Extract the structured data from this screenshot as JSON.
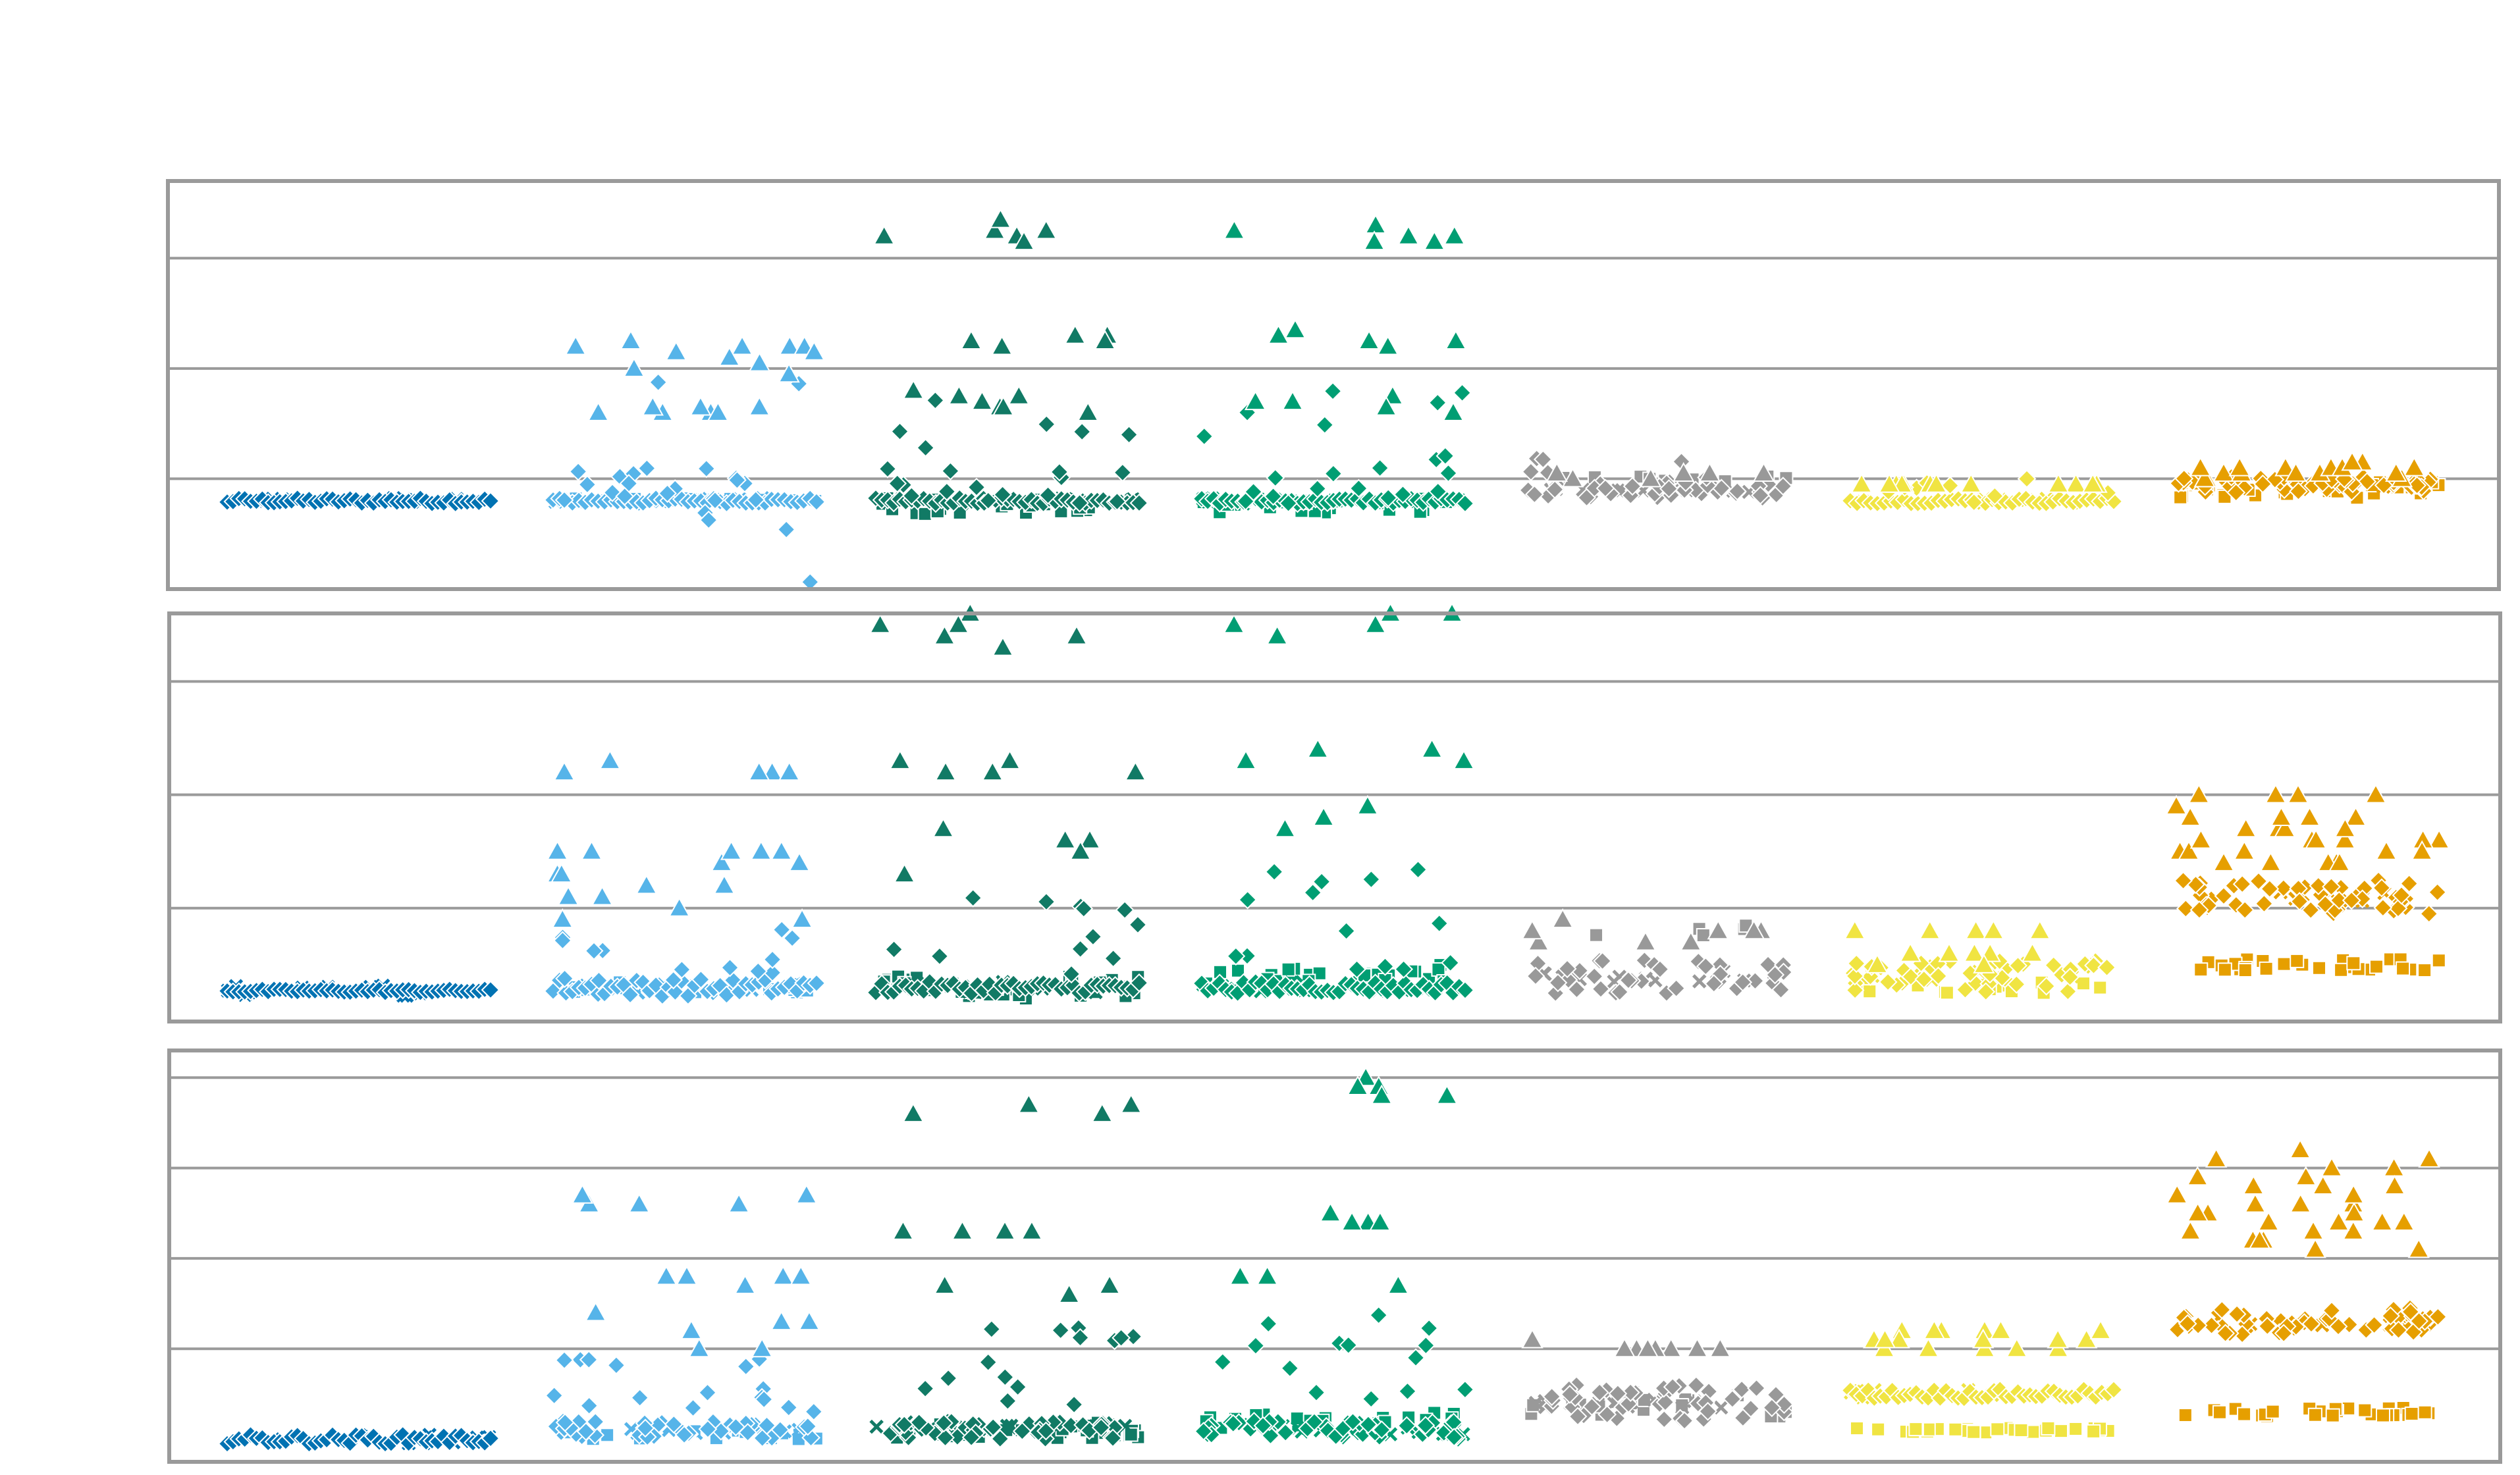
{
  "chart_data": [
    {
      "type": "scatter",
      "panel": 1,
      "title": "",
      "xlabel": "",
      "ylabel": "",
      "grid": true,
      "gridlines_y": [
        2,
        4,
        6
      ],
      "ylim": [
        0,
        7.4
      ],
      "columns": [
        {
          "color": "#0072B2",
          "diamond_bands": [
            [
              1.6,
              0.1,
              46
            ]
          ],
          "square_bands": [],
          "triangle_y": [],
          "x_markers": 12
        },
        {
          "color": "#56B4E9",
          "diamond_bands": [
            [
              1.6,
              0.1,
              42
            ],
            [
              1.9,
              0.6,
              14
            ],
            [
              2.0,
              4.0,
              9
            ]
          ],
          "square_bands": [
            [
              1.6,
              0.1,
              20
            ]
          ],
          "triangle_y": [
            3.2,
            3.3,
            3.2,
            4.4,
            4.5,
            4.4,
            4.4,
            4.3,
            4.1,
            4.3,
            4.2,
            3.9,
            4.0,
            3.3,
            3.2,
            3.2,
            3.3,
            4.4
          ],
          "x_markers": 10
        },
        {
          "color": "#117A65",
          "diamond_bands": [
            [
              1.6,
              0.1,
              45
            ],
            [
              1.9,
              0.7,
              16
            ],
            [
              3.0,
              1.0,
              6
            ]
          ],
          "square_bands": [
            [
              1.5,
              0.3,
              30
            ]
          ],
          "triangle_y": [
            6.5,
            6.7,
            6.5,
            6.4,
            6.4,
            6.3,
            4.6,
            4.6,
            4.5,
            4.5,
            4.4,
            3.6,
            3.5,
            3.5,
            3.3,
            3.2,
            3.3,
            3.4
          ],
          "x_markers": 14
        },
        {
          "color": "#009E73",
          "diamond_bands": [
            [
              1.6,
              0.1,
              45
            ],
            [
              1.9,
              0.9,
              14
            ],
            [
              3.0,
              1.2,
              7
            ]
          ],
          "square_bands": [
            [
              1.5,
              0.3,
              25
            ]
          ],
          "triangle_y": [
            6.4,
            6.5,
            6.6,
            6.4,
            6.3,
            6.3,
            4.7,
            4.6,
            4.5,
            4.5,
            4.4,
            3.5,
            3.4,
            3.4,
            3.3,
            3.2
          ],
          "x_markers": 14
        },
        {
          "color": "#999999",
          "diamond_bands": [
            [
              1.8,
              0.3,
              40
            ],
            [
              2.2,
              0.4,
              6
            ]
          ],
          "square_bands": [
            [
              2.0,
              0.1,
              10
            ]
          ],
          "triangle_y": [
            2.0,
            2.1,
            2.1,
            2.1,
            2.0,
            2.1
          ],
          "x_markers": 14
        },
        {
          "color": "#F0E442",
          "diamond_bands": [
            [
              1.6,
              0.1,
              40
            ],
            [
              1.8,
              0.5,
              10
            ]
          ],
          "square_bands": [],
          "triangle_y": [
            1.9,
            1.9,
            1.9,
            1.9,
            1.9,
            1.9,
            1.9,
            1.9,
            1.9,
            1.9,
            1.9,
            1.9
          ],
          "x_markers": 8
        },
        {
          "color": "#E69F00",
          "diamond_bands": [
            [
              1.9,
              0.3,
              55
            ]
          ],
          "square_bands": [
            [
              1.8,
              0.3,
              30
            ]
          ],
          "triangle_y": [
            2.0,
            2.1,
            2.2,
            2.2,
            2.3,
            2.2,
            2.1,
            2.0,
            2.1,
            2.2,
            2.3,
            2.1,
            2.0,
            2.2,
            2.2,
            2.1
          ],
          "x_markers": 6
        }
      ]
    },
    {
      "type": "scatter",
      "panel": 2,
      "title": "",
      "xlabel": "",
      "ylabel": "",
      "grid": true,
      "gridlines_y": [
        1,
        2,
        3
      ],
      "ylim": [
        0,
        3.6
      ],
      "columns": [
        {
          "color": "#0072B2",
          "diamond_bands": [
            [
              0.27,
              0.03,
              46
            ]
          ],
          "square_bands": [],
          "triangle_y": [],
          "x_markers": 12
        },
        {
          "color": "#56B4E9",
          "diamond_bands": [
            [
              0.3,
              0.15,
              42
            ],
            [
              0.6,
              0.5,
              14
            ]
          ],
          "square_bands": [
            [
              0.3,
              0.1,
              20
            ]
          ],
          "triangle_y": [
            2.2,
            2.3,
            2.2,
            2.2,
            2.2,
            1.5,
            1.5,
            1.5,
            1.4,
            1.3,
            1.2,
            1.2,
            1.1,
            0.9,
            0.9,
            1.0,
            1.1,
            1.3,
            1.4,
            1.5,
            1.5
          ],
          "x_markers": 10
        },
        {
          "color": "#117A65",
          "diamond_bands": [
            [
              0.3,
              0.1,
              45
            ],
            [
              0.8,
              0.8,
              12
            ]
          ],
          "square_bands": [
            [
              0.3,
              0.2,
              30
            ]
          ],
          "triangle_y": [
            3.6,
            3.4,
            3.3,
            3.4,
            3.5,
            3.5,
            2.3,
            2.2,
            2.2,
            1.7,
            1.6,
            1.6,
            1.6,
            1.5,
            1.3,
            2.3,
            2.2
          ],
          "x_markers": 14
        },
        {
          "color": "#009E73",
          "diamond_bands": [
            [
              0.3,
              0.1,
              45
            ],
            [
              0.9,
              0.9,
              14
            ]
          ],
          "square_bands": [
            [
              0.4,
              0.2,
              25
            ]
          ],
          "triangle_y": [
            3.6,
            3.6,
            3.5,
            3.5,
            3.4,
            3.4,
            2.4,
            2.4,
            2.3,
            2.3,
            1.9,
            1.8,
            1.7,
            1.8
          ],
          "x_markers": 14
        },
        {
          "color": "#999999",
          "diamond_bands": [
            [
              0.4,
              0.3,
              40
            ]
          ],
          "square_bands": [
            [
              0.8,
              0.1,
              5
            ]
          ],
          "triangle_y": [
            0.8,
            0.7,
            0.7,
            0.8,
            0.9,
            0.8,
            0.7,
            0.8
          ],
          "x_markers": 14
        },
        {
          "color": "#F0E442",
          "diamond_bands": [
            [
              0.4,
              0.3,
              50
            ]
          ],
          "square_bands": [
            [
              0.3,
              0.1,
              15
            ]
          ],
          "triangle_y": [
            0.8,
            0.8,
            0.8,
            0.8,
            0.8,
            0.6,
            0.6,
            0.6,
            0.6,
            0.6,
            0.6,
            0.5,
            0.5
          ],
          "x_markers": 8
        },
        {
          "color": "#E69F00",
          "diamond_bands": [
            [
              1.1,
              0.3,
              55
            ]
          ],
          "square_bands": [
            [
              0.5,
              0.1,
              30
            ]
          ],
          "triangle_y": [
            2.0,
            2.0,
            2.0,
            1.8,
            1.8,
            1.7,
            1.7,
            1.6,
            1.6,
            1.6,
            1.5,
            1.5,
            1.4,
            1.4,
            1.4,
            1.5,
            1.6,
            1.7,
            1.8,
            1.9,
            2.0,
            1.7,
            1.6,
            1.5,
            1.5,
            1.4,
            1.4,
            1.6,
            1.7,
            1.8
          ],
          "x_markers": 6
        }
      ]
    },
    {
      "type": "scatter",
      "panel": 3,
      "title": "",
      "xlabel": "",
      "ylabel": "",
      "grid": true,
      "gridlines_y": [
        1,
        2,
        3,
        4
      ],
      "ylim": [
        -0.25,
        4.3
      ],
      "columns": [
        {
          "color": "#0072B2",
          "diamond_bands": [
            [
              0.0,
              0.1,
              46
            ]
          ],
          "square_bands": [],
          "triangle_y": [],
          "x_markers": 12
        },
        {
          "color": "#56B4E9",
          "diamond_bands": [
            [
              0.1,
              0.2,
              42
            ],
            [
              0.6,
              0.6,
              16
            ]
          ],
          "square_bands": [
            [
              0.05,
              0.1,
              20
            ]
          ],
          "triangle_y": [
            2.7,
            2.6,
            2.6,
            2.6,
            2.7,
            1.8,
            1.8,
            1.8,
            1.8,
            1.7,
            1.4,
            1.3,
            1.3,
            1.2,
            1.0,
            1.0
          ],
          "x_markers": 10
        },
        {
          "color": "#117A65",
          "diamond_bands": [
            [
              0.1,
              0.2,
              50
            ],
            [
              0.8,
              0.9,
              14
            ]
          ],
          "square_bands": [
            [
              0.1,
              0.2,
              30
            ]
          ],
          "triangle_y": [
            3.7,
            3.6,
            3.6,
            3.7,
            2.3,
            2.3,
            2.3,
            2.3,
            1.7,
            1.7,
            1.6
          ],
          "x_markers": 14
        },
        {
          "color": "#009E73",
          "diamond_bands": [
            [
              0.1,
              0.2,
              50
            ],
            [
              0.9,
              1.0,
              14
            ]
          ],
          "square_bands": [
            [
              0.2,
              0.2,
              25
            ]
          ],
          "triangle_y": [
            4.0,
            3.9,
            3.8,
            3.8,
            3.9,
            2.5,
            2.4,
            2.4,
            2.4,
            1.8,
            1.8,
            1.7
          ],
          "x_markers": 14
        },
        {
          "color": "#999999",
          "diamond_bands": [
            [
              0.4,
              0.4,
              45
            ]
          ],
          "square_bands": [
            [
              0.4,
              0.3,
              20
            ]
          ],
          "triangle_y": [
            1.0,
            1.1,
            1.0,
            1.0,
            1.0,
            1.0,
            1.0,
            1.0
          ],
          "x_markers": 14
        },
        {
          "color": "#F0E442",
          "diamond_bands": [
            [
              0.5,
              0.1,
              45
            ]
          ],
          "square_bands": [
            [
              0.1,
              0.05,
              30
            ]
          ],
          "triangle_y": [
            1.2,
            1.2,
            1.1,
            1.0,
            1.0,
            1.1,
            1.2,
            1.1,
            1.0,
            1.1,
            1.2,
            1.1,
            1.0,
            1.2,
            1.1,
            1.0,
            1.2,
            1.1
          ],
          "x_markers": 8
        },
        {
          "color": "#E69F00",
          "diamond_bands": [
            [
              1.3,
              0.3,
              55
            ]
          ],
          "square_bands": [
            [
              0.3,
              0.1,
              30
            ]
          ],
          "triangle_y": [
            3.2,
            3.1,
            3.0,
            2.9,
            2.8,
            2.7,
            2.6,
            2.5,
            2.4,
            2.3,
            2.2,
            2.1,
            2.3,
            2.4,
            2.6,
            2.8,
            3.0,
            3.1,
            2.5,
            2.2,
            2.1,
            2.4,
            2.7,
            2.9,
            2.3,
            2.2,
            2.5,
            2.8,
            2.6,
            2.4
          ],
          "x_markers": 6
        }
      ]
    }
  ]
}
